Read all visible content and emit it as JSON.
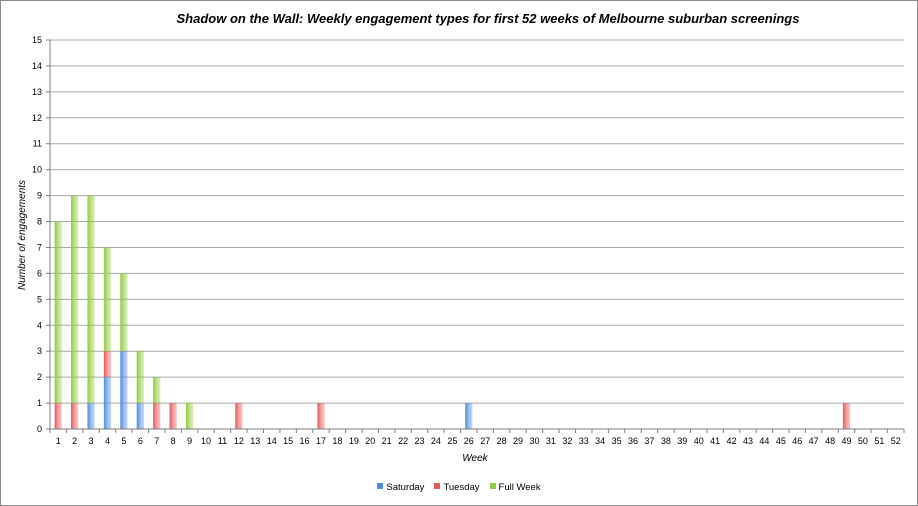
{
  "chart_data": {
    "type": "bar",
    "stacked": true,
    "title": "Shadow on the Wall: Weekly engagement types for first 52 weeks of Melbourne suburban screenings",
    "xlabel": "Week",
    "ylabel": "Number of engagements",
    "ylim": [
      0,
      15
    ],
    "yticks": [
      0,
      1,
      2,
      3,
      4,
      5,
      6,
      7,
      8,
      9,
      10,
      11,
      12,
      13,
      14,
      15
    ],
    "grid": true,
    "legend_position": "bottom",
    "categories": [
      "1",
      "2",
      "3",
      "4",
      "5",
      "6",
      "7",
      "8",
      "9",
      "10",
      "11",
      "12",
      "13",
      "14",
      "15",
      "16",
      "17",
      "18",
      "19",
      "20",
      "21",
      "22",
      "23",
      "24",
      "25",
      "26",
      "27",
      "28",
      "29",
      "30",
      "31",
      "32",
      "33",
      "34",
      "35",
      "36",
      "37",
      "38",
      "39",
      "40",
      "41",
      "42",
      "43",
      "44",
      "45",
      "46",
      "47",
      "48",
      "49",
      "50",
      "51",
      "52"
    ],
    "series": [
      {
        "name": "Saturday",
        "color": "#4f8fe0",
        "values": [
          0,
          0,
          1,
          2,
          3,
          1,
          0,
          0,
          0,
          0,
          0,
          0,
          0,
          0,
          0,
          0,
          0,
          0,
          0,
          0,
          0,
          0,
          0,
          0,
          0,
          1,
          0,
          0,
          0,
          0,
          0,
          0,
          0,
          0,
          0,
          0,
          0,
          0,
          0,
          0,
          0,
          0,
          0,
          0,
          0,
          0,
          0,
          0,
          0,
          0,
          0,
          0
        ]
      },
      {
        "name": "Tuesday",
        "color": "#e85a5a",
        "values": [
          1,
          1,
          0,
          1,
          0,
          0,
          1,
          1,
          0,
          0,
          0,
          1,
          0,
          0,
          0,
          0,
          1,
          0,
          0,
          0,
          0,
          0,
          0,
          0,
          0,
          0,
          0,
          0,
          0,
          0,
          0,
          0,
          0,
          0,
          0,
          0,
          0,
          0,
          0,
          0,
          0,
          0,
          0,
          0,
          0,
          0,
          0,
          0,
          1,
          0,
          0,
          0
        ]
      },
      {
        "name": "Full Week",
        "color": "#8fcc3e",
        "values": [
          7,
          8,
          8,
          4,
          3,
          2,
          1,
          0,
          1,
          0,
          0,
          0,
          0,
          0,
          0,
          0,
          0,
          0,
          0,
          0,
          0,
          0,
          0,
          0,
          0,
          0,
          0,
          0,
          0,
          0,
          0,
          0,
          0,
          0,
          0,
          0,
          0,
          0,
          0,
          0,
          0,
          0,
          0,
          0,
          0,
          0,
          0,
          0,
          0,
          0,
          0,
          0
        ]
      }
    ]
  }
}
